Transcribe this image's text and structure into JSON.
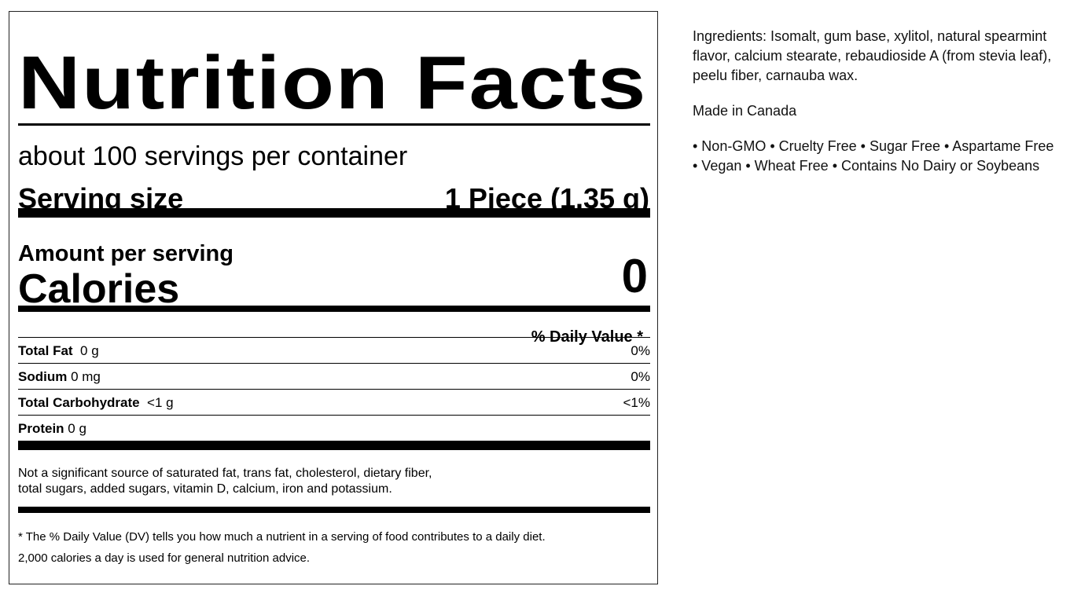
{
  "label": {
    "title": "Nutrition Facts",
    "servings_per_container": "about 100 servings per container",
    "serving_size_label": "Serving size",
    "serving_size_value": "1 Piece (1.35 g)",
    "amount_per_serving": "Amount per serving",
    "calories_label": "Calories",
    "calories_value": "0",
    "daily_value_header": "% Daily Value *",
    "nutrients": [
      {
        "name": "Total Fat",
        "amount": "0 g",
        "dv": "0%"
      },
      {
        "name": "Sodium",
        "amount": "0 mg",
        "dv": "0%"
      },
      {
        "name": "Total Carbohydrate",
        "amount": "<1 g",
        "dv": "<1%"
      },
      {
        "name": "Protein",
        "amount": "0 g",
        "dv": ""
      }
    ],
    "not_significant": "Not a significant source of saturated fat, trans fat, cholesterol, dietary fiber, total sugars, added sugars, vitamin D, calcium, iron and potassium.",
    "footnote_1": "* The % Daily Value (DV) tells you how much a nutrient in a serving of food contributes to a daily diet.",
    "footnote_2": "2,000 calories a day is used for general nutrition advice."
  },
  "side": {
    "ingredients": "Ingredients: Isomalt, gum base, xylitol, natural spearmint flavor, calcium stearate, rebaudioside A (from stevia leaf), peelu fiber, carnauba wax.",
    "origin": "Made in Canada",
    "claims": "• Non-GMO • Cruelty Free • Sugar Free • Aspartame Free • Vegan • Wheat Free • Contains No Dairy or Soybeans"
  }
}
